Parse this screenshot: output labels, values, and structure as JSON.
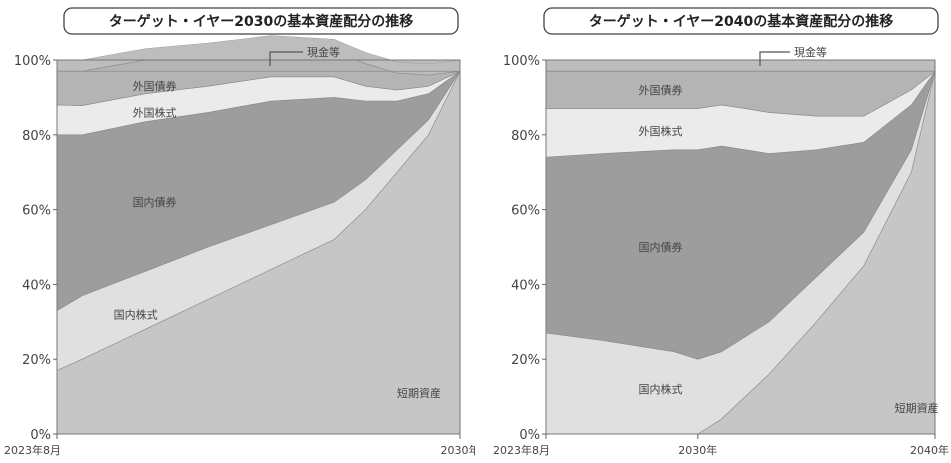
{
  "colors": {
    "cash": "#bdbdbd",
    "foreign_bonds": "#b4b4b4",
    "foreign_equity": "#ebebeb",
    "domestic_bonds": "#9d9d9d",
    "domestic_equity": "#e0e0e0",
    "short_term": "#c6c6c6"
  },
  "chart_data": [
    {
      "type": "area",
      "stacked": true,
      "title": "ターゲット・イヤー2030の基本資産配分の推移",
      "x_tick_labels": [
        "2023年8月",
        "2030年"
      ],
      "y_tick_labels": [
        "0%",
        "20%",
        "40%",
        "60%",
        "80%",
        "100%"
      ],
      "ylim": [
        0,
        100
      ],
      "callout_label": "現金等",
      "x": [
        2023.6,
        2024.0,
        2025.0,
        2026.0,
        2027.0,
        2028.0,
        2028.5,
        2029.0,
        2029.5,
        2030.0
      ],
      "series": [
        {
          "name": "短期資産",
          "values": [
            17,
            20,
            28,
            36,
            44,
            52,
            60,
            70,
            80,
            97
          ]
        },
        {
          "name": "国内株式",
          "values": [
            16,
            17,
            15.5,
            14,
            12,
            10,
            8,
            6,
            4,
            0
          ]
        },
        {
          "name": "国内債券",
          "values": [
            47,
            43,
            40,
            36,
            33,
            28,
            21,
            13,
            7,
            0
          ]
        },
        {
          "name": "外国株式",
          "values": [
            8,
            7.8,
            7.5,
            7,
            6.5,
            5.5,
            4,
            3,
            2,
            0
          ]
        },
        {
          "name": "外国債券",
          "values": [
            9,
            9.2,
            9,
            8.5,
            8,
            7,
            6,
            4.5,
            3,
            0
          ]
        },
        {
          "name": "現金等",
          "values": [
            3,
            3,
            3,
            3,
            3,
            3,
            3,
            3,
            3,
            3
          ]
        }
      ],
      "label_positions": [
        {
          "text": "短期資産",
          "x": 2029.0,
          "y": 11
        },
        {
          "text": "国内株式",
          "x": 2024.5,
          "y": 32
        },
        {
          "text": "国内債券",
          "x": 2024.8,
          "y": 62
        },
        {
          "text": "外国株式",
          "x": 2024.8,
          "y": 86
        },
        {
          "text": "外国債券",
          "x": 2024.8,
          "y": 93
        }
      ]
    },
    {
      "type": "area",
      "stacked": true,
      "title": "ターゲット・イヤー2040の基本資産配分の推移",
      "x_tick_labels": [
        "2023年8月",
        "2030年",
        "2040年"
      ],
      "y_tick_labels": [
        "0%",
        "20%",
        "40%",
        "60%",
        "80%",
        "100%"
      ],
      "ylim": [
        0,
        100
      ],
      "callout_label": "現金等",
      "x": [
        2023.6,
        2026.0,
        2029.0,
        2030.0,
        2031.0,
        2032.0,
        2033.0,
        2035.0,
        2037.0,
        2039.0,
        2040.0
      ],
      "series": [
        {
          "name": "短期資産",
          "values": [
            0,
            0,
            0,
            0,
            4,
            10,
            16,
            30,
            45,
            70,
            97
          ]
        },
        {
          "name": "国内株式",
          "values": [
            27,
            25,
            22,
            20,
            18,
            16,
            14,
            12,
            9,
            6,
            0
          ]
        },
        {
          "name": "国内債券",
          "values": [
            47,
            50,
            54,
            56,
            55,
            50,
            45,
            34,
            24,
            12,
            0
          ]
        },
        {
          "name": "外国株式",
          "values": [
            13,
            12,
            11,
            11,
            11,
            11,
            11,
            9,
            7,
            4,
            0
          ]
        },
        {
          "name": "外国債券",
          "values": [
            10,
            10,
            10,
            10,
            9,
            10,
            11,
            12,
            12,
            5,
            0
          ]
        },
        {
          "name": "現金等",
          "values": [
            3,
            3,
            3,
            3,
            3,
            3,
            3,
            3,
            3,
            3,
            3
          ]
        }
      ],
      "label_positions": [
        {
          "text": "短期資産",
          "x": 2038.3,
          "y": 7
        },
        {
          "text": "国内株式",
          "x": 2027.5,
          "y": 12
        },
        {
          "text": "国内債券",
          "x": 2027.5,
          "y": 50
        },
        {
          "text": "外国株式",
          "x": 2027.5,
          "y": 81
        },
        {
          "text": "外国債券",
          "x": 2027.5,
          "y": 92
        }
      ]
    }
  ]
}
